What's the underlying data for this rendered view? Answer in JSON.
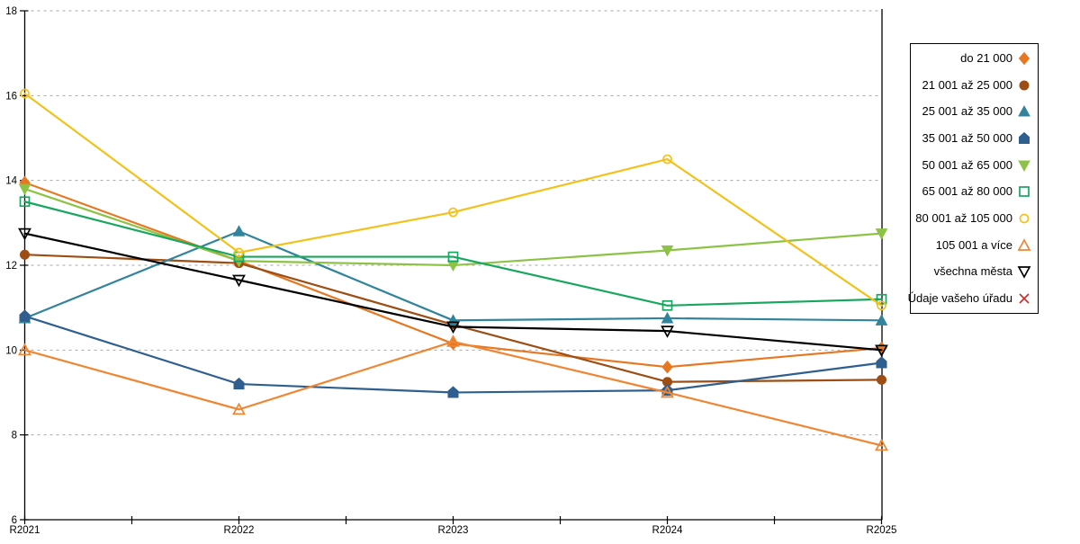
{
  "chart_data": {
    "type": "line",
    "title": "",
    "xlabel": "",
    "ylabel": "",
    "categories": [
      "R2021",
      "R2022",
      "R2023",
      "R2024",
      "R2025"
    ],
    "ylim": [
      6,
      18
    ],
    "yticks": [
      6,
      8,
      10,
      12,
      14,
      16,
      18
    ],
    "grid": "horizontal-dashed",
    "legend_position": "right",
    "series": [
      {
        "name": "do 21 000",
        "marker": "diamond",
        "filled": true,
        "color": "#E87722",
        "values": [
          13.95,
          12.1,
          10.15,
          9.6,
          10.05
        ]
      },
      {
        "name": "21 001 až 25 000",
        "marker": "circle",
        "filled": true,
        "color": "#9C4E14",
        "values": [
          12.25,
          12.05,
          10.6,
          9.25,
          9.3
        ]
      },
      {
        "name": "25 001 až 35 000",
        "marker": "triangle-up",
        "filled": true,
        "color": "#31849B",
        "values": [
          10.75,
          12.8,
          10.7,
          10.75,
          10.7
        ]
      },
      {
        "name": "35 001 až 50 000",
        "marker": "pentagon",
        "filled": true,
        "color": "#2F5F8F",
        "values": [
          10.8,
          9.2,
          9.0,
          9.05,
          9.7
        ]
      },
      {
        "name": "50 001 až 65 000",
        "marker": "triangle-down",
        "filled": true,
        "color": "#8CC344",
        "values": [
          13.8,
          12.1,
          12.0,
          12.35,
          12.75
        ]
      },
      {
        "name": "65 001 až 80 000",
        "marker": "square",
        "filled": false,
        "color": "#18A75E",
        "values": [
          13.5,
          12.2,
          12.2,
          11.05,
          11.2
        ]
      },
      {
        "name": "80 001 až 105 000",
        "marker": "circle",
        "filled": false,
        "color": "#F2C21B",
        "values": [
          16.05,
          12.3,
          13.25,
          14.5,
          11.05
        ]
      },
      {
        "name": "105 001 a více",
        "marker": "triangle-up",
        "filled": false,
        "color": "#F08532",
        "values": [
          10.0,
          8.6,
          10.2,
          9.0,
          7.75
        ]
      },
      {
        "name": "všechna města",
        "marker": "triangle-down",
        "filled": false,
        "color": "#000000",
        "values": [
          12.75,
          11.65,
          10.55,
          10.45,
          10.0
        ]
      },
      {
        "name": "Údaje vašeho úřadu",
        "marker": "x",
        "filled": false,
        "color": "#CC2A2A",
        "values": []
      }
    ]
  },
  "style": {
    "background": "#FFFFFF",
    "grid_color": "#A6A6A6",
    "axis_color": "#000000",
    "legend_border": "#000000",
    "text_color": "#000000"
  }
}
